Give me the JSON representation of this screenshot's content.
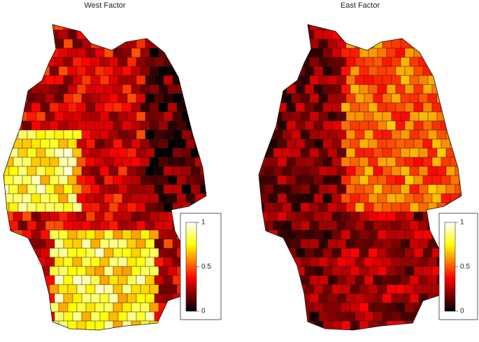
{
  "maps": [
    {
      "title": "West Factor",
      "colorbar": {
        "lim": [
          0,
          1
        ],
        "ticks": [
          0,
          0.5,
          1
        ]
      }
    },
    {
      "title": "East Factor",
      "colorbar": {
        "lim": [
          0,
          1
        ],
        "ticks": [
          0,
          0.5,
          1
        ]
      }
    }
  ]
}
